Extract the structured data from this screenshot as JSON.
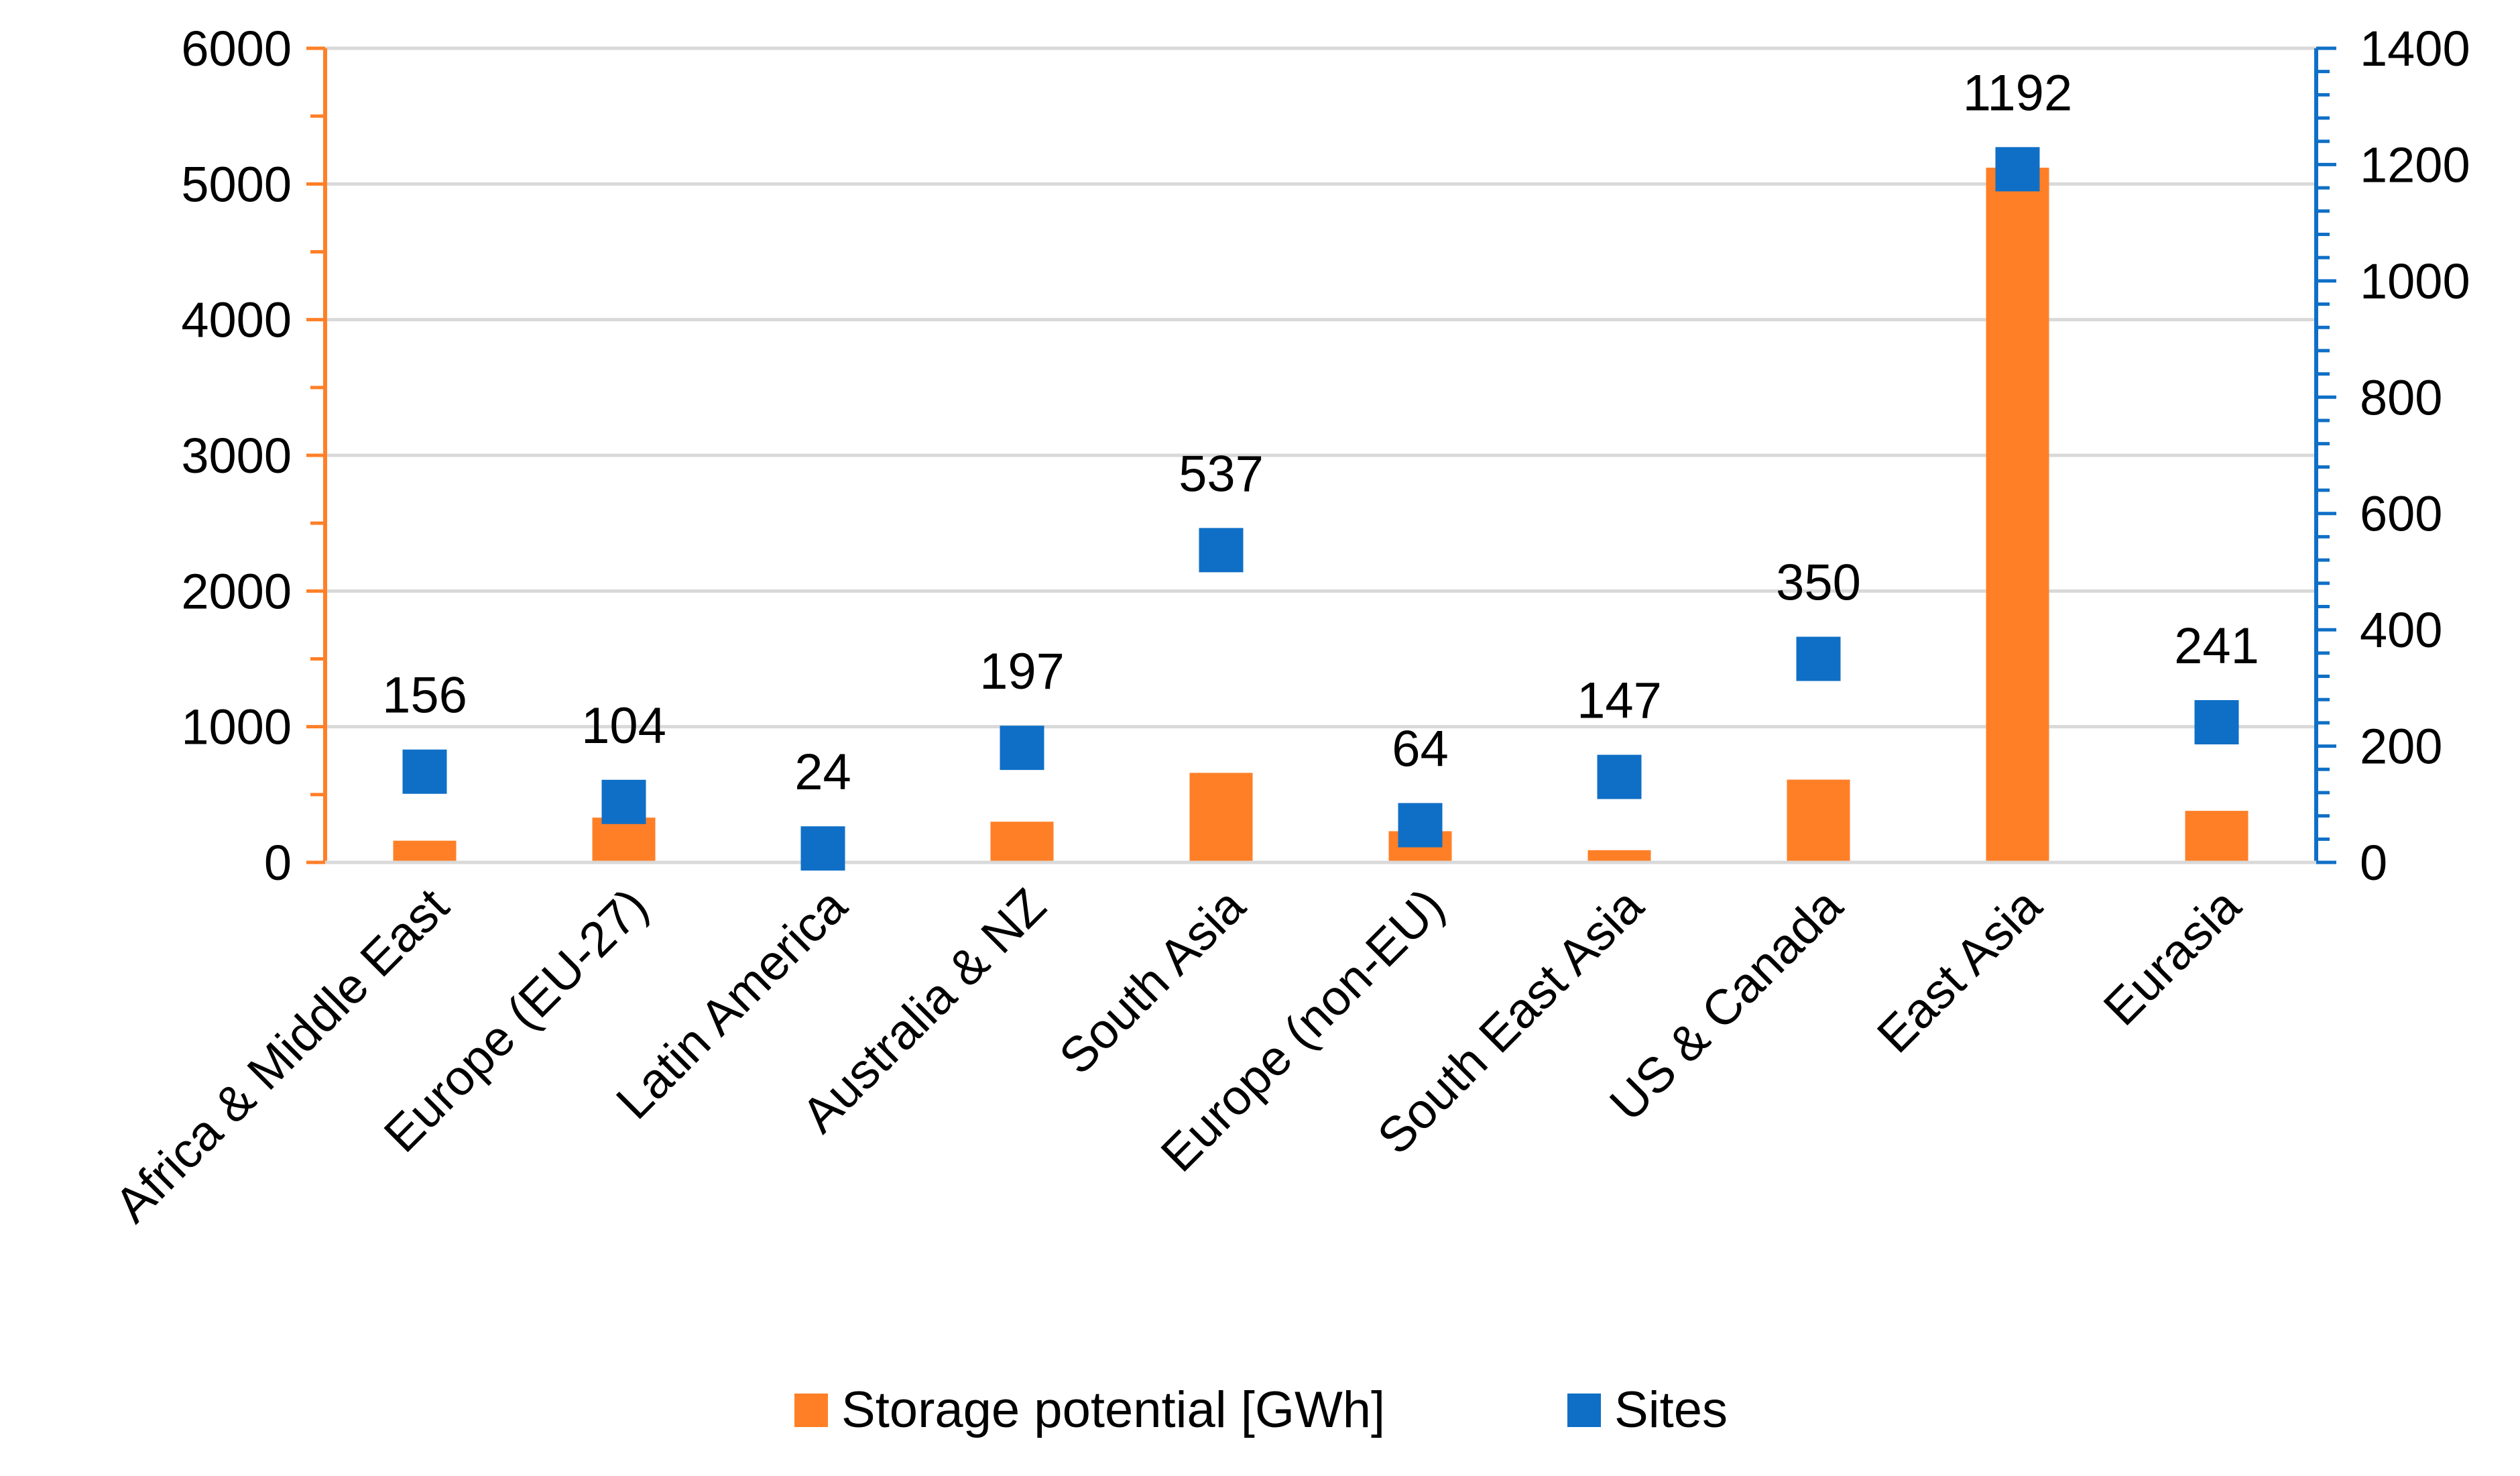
{
  "chart_data": {
    "type": "bar+scatter",
    "categories": [
      "Africa & Middle East",
      "Europe (EU-27)",
      "Latin America",
      "Australia & NZ",
      "South Asia",
      "Europe (non-EU)",
      "South East Asia",
      "US & Canada",
      "East Asia",
      "Eurasia"
    ],
    "series": [
      {
        "name": "Storage potential [GWh]",
        "kind": "bar",
        "axis": "left",
        "color": "#FF7F27",
        "values": [
          160,
          330,
          10,
          300,
          660,
          230,
          90,
          610,
          5120,
          380
        ]
      },
      {
        "name": "Sites",
        "kind": "scatter",
        "axis": "right",
        "color": "#0F6FC6",
        "values": [
          156,
          104,
          24,
          197,
          537,
          64,
          147,
          350,
          1192,
          241
        ],
        "labels": [
          "156",
          "104",
          "24",
          "197",
          "537",
          "64",
          "147",
          "350",
          "1192",
          "241"
        ]
      }
    ],
    "y_left": {
      "min": 0,
      "max": 6000,
      "ticks": [
        "0",
        "1000",
        "2000",
        "3000",
        "4000",
        "5000",
        "6000"
      ],
      "color": "#FF7F27"
    },
    "y_right": {
      "min": 0,
      "max": 1400,
      "ticks": [
        "0",
        "200",
        "400",
        "600",
        "800",
        "1000",
        "1200",
        "1400"
      ],
      "color": "#0F6FC6"
    },
    "grid": true,
    "legend_position": "bottom-center",
    "gridline_color": "#D9D9D9",
    "title": "",
    "xlabel": "",
    "ylabel": ""
  }
}
